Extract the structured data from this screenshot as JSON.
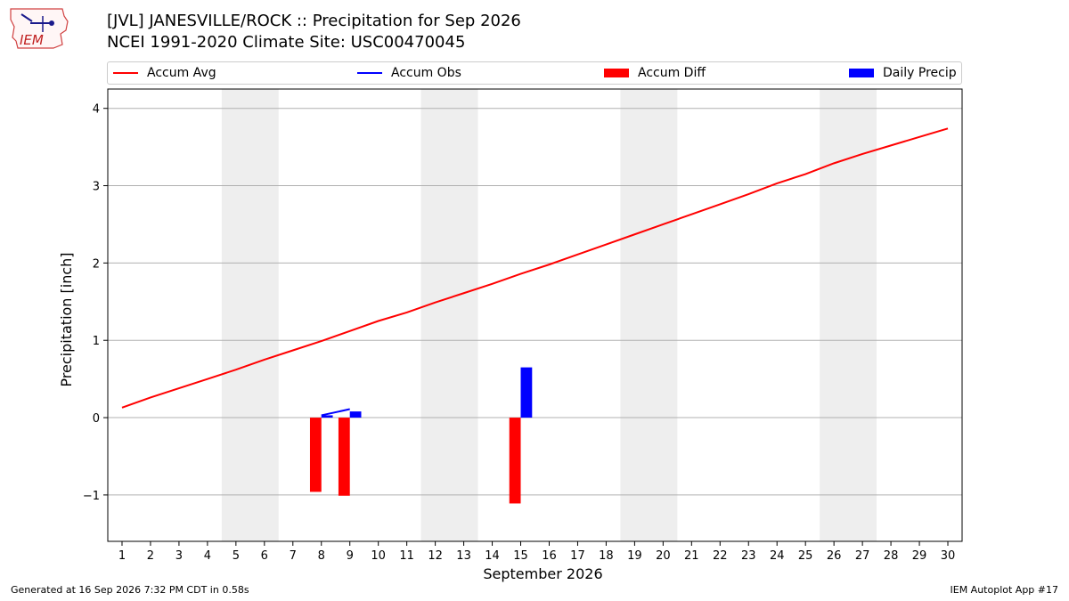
{
  "header": {
    "title_line1": "[JVL] JANESVILLE/ROCK :: Precipitation for Sep 2026",
    "title_line2": "NCEI 1991-2020 Climate Site: USC00470045",
    "logo_text": "IEM"
  },
  "legend": [
    {
      "label": "Accum Avg",
      "color": "#ff0000",
      "kind": "line"
    },
    {
      "label": "Accum Obs",
      "color": "#0000ff",
      "kind": "line"
    },
    {
      "label": "Accum Diff",
      "color": "#ff0000",
      "kind": "patch"
    },
    {
      "label": "Daily Precip",
      "color": "#0000ff",
      "kind": "patch"
    }
  ],
  "footer": {
    "generated": "Generated at 16 Sep 2026 7:32 PM CDT in 0.58s",
    "app": "IEM Autoplot App #17"
  },
  "chart_data": {
    "type": "bar",
    "xlabel": "September 2026",
    "ylabel": "Precipitation [inch]",
    "x": [
      1,
      2,
      3,
      4,
      5,
      6,
      7,
      8,
      9,
      10,
      11,
      12,
      13,
      14,
      15,
      16,
      17,
      18,
      19,
      20,
      21,
      22,
      23,
      24,
      25,
      26,
      27,
      28,
      29,
      30
    ],
    "xlim": [
      0.5,
      30.5
    ],
    "ylim": [
      -1.6,
      4.25
    ],
    "yticks": [
      -1,
      0,
      1,
      2,
      3,
      4
    ],
    "ytick_labels": [
      "−1",
      "0",
      "1",
      "2",
      "3",
      "4"
    ],
    "grid": "y-major",
    "weekend_shading": [
      [
        5,
        6
      ],
      [
        12,
        13
      ],
      [
        19,
        20
      ],
      [
        26,
        27
      ]
    ],
    "shading_color": "#eeeeee",
    "series": [
      {
        "name": "Accum Avg",
        "kind": "line",
        "color": "#ff0000",
        "x": [
          1,
          2,
          3,
          4,
          5,
          6,
          7,
          8,
          9,
          10,
          11,
          12,
          13,
          14,
          15,
          16,
          17,
          18,
          19,
          20,
          21,
          22,
          23,
          24,
          25,
          26,
          27,
          28,
          29,
          30
        ],
        "values": [
          0.13,
          0.26,
          0.38,
          0.5,
          0.62,
          0.75,
          0.87,
          0.99,
          1.12,
          1.25,
          1.36,
          1.49,
          1.61,
          1.73,
          1.86,
          1.98,
          2.11,
          2.24,
          2.37,
          2.5,
          2.63,
          2.76,
          2.89,
          3.03,
          3.15,
          3.29,
          3.41,
          3.52,
          3.63,
          3.74
        ]
      },
      {
        "name": "Accum Obs",
        "kind": "line",
        "color": "#0000ff",
        "x": [
          8,
          9
        ],
        "values": [
          0.03,
          0.11
        ]
      },
      {
        "name": "Accum Diff",
        "kind": "bar",
        "color": "#ff0000",
        "offset": -0.2,
        "x": [
          8,
          9,
          15
        ],
        "values": [
          -0.96,
          -1.01,
          -1.11
        ]
      },
      {
        "name": "Daily Precip",
        "kind": "bar",
        "color": "#0000ff",
        "offset": 0.2,
        "x": [
          8,
          9,
          15
        ],
        "values": [
          0.03,
          0.08,
          0.65
        ]
      }
    ]
  }
}
